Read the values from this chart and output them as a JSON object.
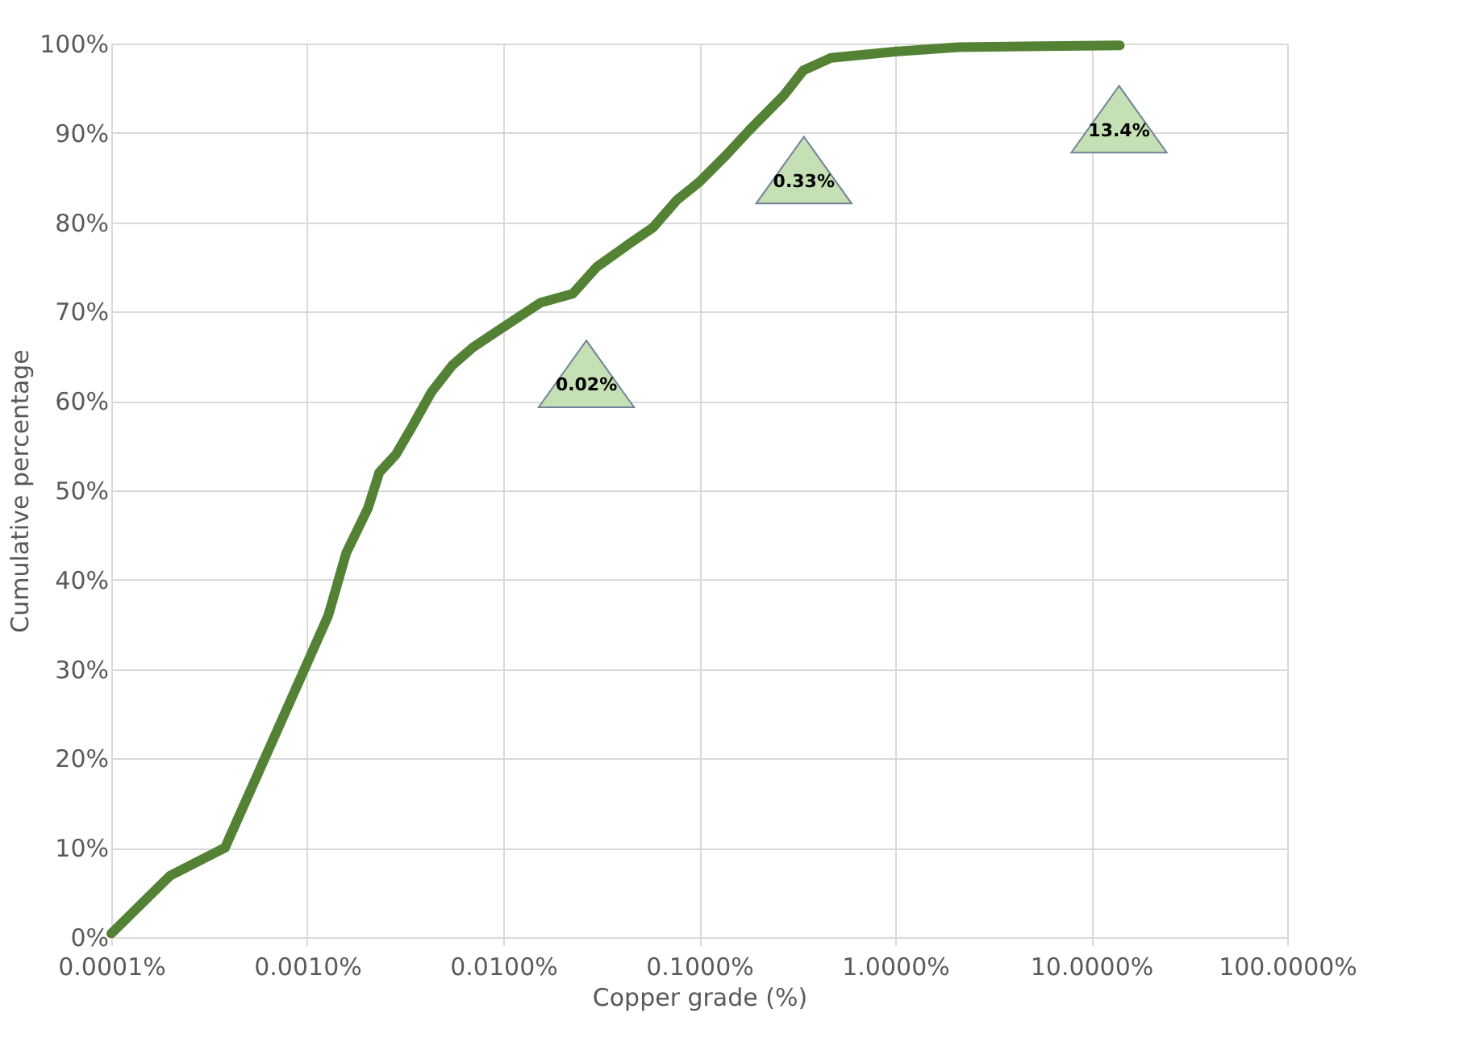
{
  "chart_data": {
    "type": "line",
    "xlabel": "Copper grade (%)",
    "ylabel": "Cumulative percentage",
    "x": [
      0.0001,
      0.0002,
      0.00038,
      0.001,
      0.00128,
      0.00158,
      0.00204,
      0.00233,
      0.00283,
      0.0034,
      0.0043,
      0.0055,
      0.007,
      0.0096,
      0.0155,
      0.0226,
      0.03,
      0.044,
      0.058,
      0.077,
      0.1,
      0.137,
      0.18,
      0.27,
      0.34,
      0.47,
      1,
      2.1,
      14
    ],
    "series": [
      {
        "color": "#548235",
        "values": [
          0.4,
          6.9,
          10,
          30.7,
          36,
          43,
          48,
          52,
          54,
          57,
          61,
          64,
          66,
          68,
          71,
          72,
          75,
          77.6,
          79.4,
          82.5,
          84.5,
          87.5,
          90.3,
          94.2,
          97,
          98.4,
          99.1,
          99.6,
          99.8
        ]
      }
    ],
    "log": "x",
    "xlim": [
      0.0001,
      100
    ],
    "ylim": [
      0,
      100
    ],
    "xticks": [
      {
        "value": 0.0001,
        "label": "0.0001%"
      },
      {
        "value": 0.001,
        "label": "0.0010%"
      },
      {
        "value": 0.01,
        "label": "0.0100%"
      },
      {
        "value": 0.1,
        "label": "0.1000%"
      },
      {
        "value": 1,
        "label": "1.0000%"
      },
      {
        "value": 10,
        "label": "10.0000%"
      },
      {
        "value": 100,
        "label": "100.0000%"
      }
    ],
    "yticks": [
      {
        "value": 0,
        "label": "0%"
      },
      {
        "value": 10,
        "label": "10%"
      },
      {
        "value": 20,
        "label": "20%"
      },
      {
        "value": 30,
        "label": "30%"
      },
      {
        "value": 40,
        "label": "40%"
      },
      {
        "value": 50,
        "label": "50%"
      },
      {
        "value": 60,
        "label": "60%"
      },
      {
        "value": 70,
        "label": "70%"
      },
      {
        "value": 80,
        "label": "80%"
      },
      {
        "value": 90,
        "label": "90%"
      },
      {
        "value": 100,
        "label": "100%"
      }
    ],
    "grid": true,
    "marker": "none",
    "line_style": "solid",
    "annotations": [
      "0.02%",
      "0.33%",
      "13.4%"
    ]
  }
}
